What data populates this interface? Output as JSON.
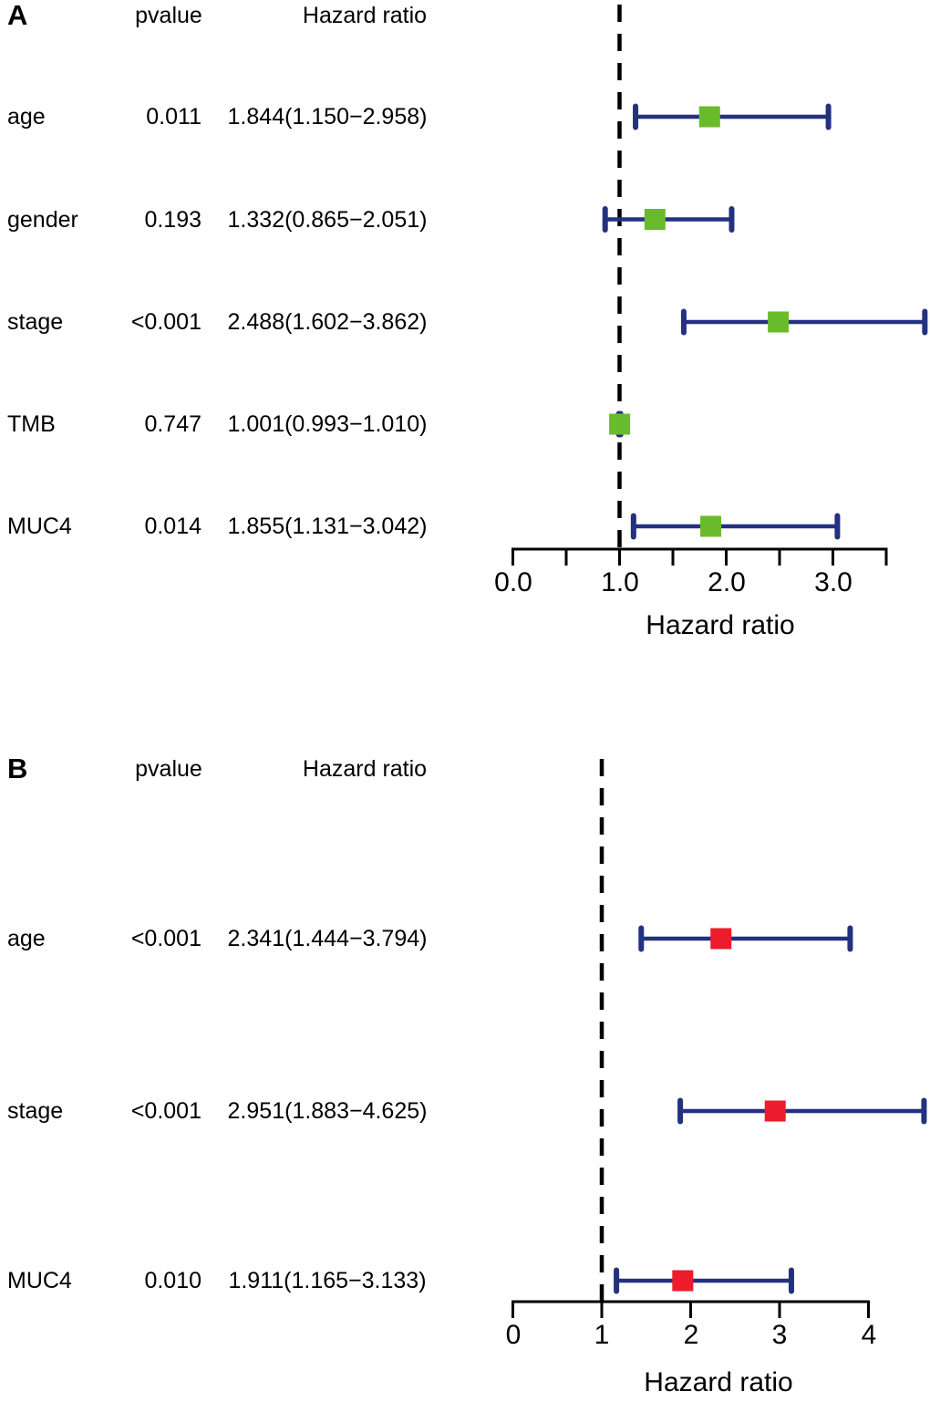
{
  "figure": {
    "background": "#ffffff"
  },
  "chart_data": [
    {
      "type": "forest",
      "panel": "A",
      "columns": {
        "pvalue": "pvalue",
        "hazard_ratio": "Hazard ratio"
      },
      "rows": [
        {
          "name": "age",
          "pvalue": "0.011",
          "label": "1.844(1.150−2.958)",
          "hr": 1.844,
          "ci_low": 1.15,
          "ci_high": 2.958
        },
        {
          "name": "gender",
          "pvalue": "0.193",
          "label": "1.332(0.865−2.051)",
          "hr": 1.332,
          "ci_low": 0.865,
          "ci_high": 2.051
        },
        {
          "name": "stage",
          "pvalue": "<0.001",
          "label": "2.488(1.602−3.862)",
          "hr": 2.488,
          "ci_low": 1.602,
          "ci_high": 3.862
        },
        {
          "name": "TMB",
          "pvalue": "0.747",
          "label": "1.001(0.993−1.010)",
          "hr": 1.001,
          "ci_low": 0.993,
          "ci_high": 1.01
        },
        {
          "name": "MUC4",
          "pvalue": "0.014",
          "label": "1.855(1.131−3.042)",
          "hr": 1.855,
          "ci_low": 1.131,
          "ci_high": 3.042
        }
      ],
      "xlabel": "Hazard ratio",
      "xlim": [
        0,
        3.5
      ],
      "x_ticks": [
        0,
        0.5,
        1,
        1.5,
        2,
        2.5,
        3,
        3.5
      ],
      "x_tick_labels": [
        "0.0",
        "1.0",
        "2.0",
        "3.0"
      ],
      "x_tick_label_values": [
        0,
        1,
        2,
        3
      ],
      "reference_line": 1.0,
      "grid": false,
      "marker_shape": "square",
      "marker_color": "#6ABB2B",
      "ci_color": "#24317E",
      "reference_line_color": "#000000"
    },
    {
      "type": "forest",
      "panel": "B",
      "columns": {
        "pvalue": "pvalue",
        "hazard_ratio": "Hazard ratio"
      },
      "rows": [
        {
          "name": "age",
          "pvalue": "<0.001",
          "label": "2.341(1.444−3.794)",
          "hr": 2.341,
          "ci_low": 1.444,
          "ci_high": 3.794
        },
        {
          "name": "stage",
          "pvalue": "<0.001",
          "label": "2.951(1.883−4.625)",
          "hr": 2.951,
          "ci_low": 1.883,
          "ci_high": 4.625
        },
        {
          "name": "MUC4",
          "pvalue": "0.010",
          "label": "1.911(1.165−3.133)",
          "hr": 1.911,
          "ci_low": 1.165,
          "ci_high": 3.133
        }
      ],
      "xlabel": "Hazard ratio",
      "xlim": [
        0,
        4
      ],
      "x_ticks": [
        0,
        1,
        2,
        3,
        4
      ],
      "x_tick_labels": [
        "0",
        "1",
        "2",
        "3",
        "4"
      ],
      "x_tick_label_values": [
        0,
        1,
        2,
        3,
        4
      ],
      "reference_line": 1.0,
      "grid": false,
      "marker_shape": "square",
      "marker_color": "#EC1C2C",
      "ci_color": "#24317E",
      "reference_line_color": "#000000"
    }
  ]
}
